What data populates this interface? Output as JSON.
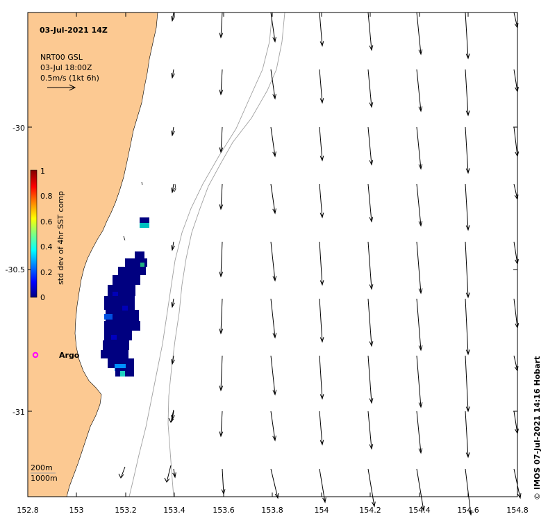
{
  "map": {
    "title": "03-Jul-2021 14Z",
    "vector_legend": {
      "line1": "NRT00 GSL",
      "line2": "03-Jul 18:00Z",
      "line3": "0.5m/s (1kt 6h)"
    },
    "colorbar": {
      "label": "std dev of 4hr SST comp",
      "ticks": [
        "1",
        "0.8",
        "0.6",
        "0.4",
        "0.2",
        "0"
      ],
      "colors": [
        "#000080",
        "#0000ff",
        "#0080ff",
        "#00ffff",
        "#80ff80",
        "#ffff00",
        "#ff8000",
        "#ff0000",
        "#800000"
      ]
    },
    "x_ticks": [
      "152.8",
      "153",
      "153.2",
      "153.4",
      "153.6",
      "153.8",
      "154",
      "154.2",
      "154.4",
      "154.6",
      "154.8"
    ],
    "y_ticks": [
      "-30",
      "-30.5",
      "-31"
    ],
    "argo_label": "Argo",
    "depth_legend": {
      "line1": "200m",
      "line2": "1000m"
    },
    "credit": "IMOS 07-Jul-2021 14:16 Hobart",
    "credit_symbol": "©",
    "colors": {
      "land": "#fcc992",
      "argo": "#ff00ff",
      "contour": "#a0a0a0"
    }
  }
}
